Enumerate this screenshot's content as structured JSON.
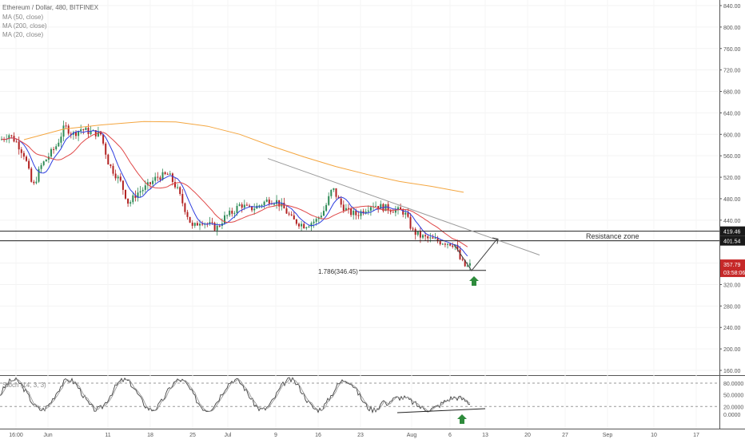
{
  "legend": {
    "symbol": "Ethereum / Dollar, 480, BITFINEX",
    "ma50": "MA (50, close)",
    "ma200": "MA (200, close)",
    "ma20": "MA (20, close)"
  },
  "stoch_label": "Stoch (14, 3, 3)",
  "resistance_label": "Resistance zone",
  "fib_label": "1.786(346.45)",
  "colors": {
    "up": "#2e8b57",
    "down": "#b22222",
    "ma20": "#2f3fe0",
    "ma50": "#e04848",
    "ma200": "#f4a640",
    "trend": "#9a9a9a",
    "price_badge": "#c62828",
    "arrow": "#2e8b3c"
  },
  "price_badges": {
    "current_price": "357.79",
    "countdown": "03:58:06"
  },
  "level_badges": [
    "419.46",
    "401.54"
  ],
  "chart_data": [
    {
      "type": "candlestick",
      "title": "Ethereum / Dollar, 480, BITFINEX",
      "y_ticks": [
        "840.00",
        "800.00",
        "760.00",
        "720.00",
        "680.00",
        "640.00",
        "600.00",
        "560.00",
        "520.00",
        "480.00",
        "440.00",
        "400.00",
        "360.00",
        "320.00",
        "280.00",
        "240.00",
        "200.00",
        "160.00"
      ],
      "ylim": [
        140,
        860
      ],
      "x_ticks": [
        "16:00",
        "Jun",
        "11",
        "18",
        "25",
        "Jul",
        "9",
        "16",
        "23",
        "Aug",
        "6",
        "13",
        "20",
        "27",
        "Sep",
        "10",
        "17"
      ],
      "series": [
        {
          "name": "MA (20, close)"
        },
        {
          "name": "MA (50, close)"
        },
        {
          "name": "MA (200, close)"
        }
      ],
      "levels": [
        419.46,
        401.54
      ],
      "fib_level": 346.45,
      "last_price": 357.79
    },
    {
      "type": "line",
      "title": "Stoch (14, 3, 3)",
      "y_ticks": [
        "80.0000",
        "50.0000",
        "20.0000",
        "0.0000"
      ],
      "ylim": [
        -15,
        100
      ],
      "levels": [
        80,
        20
      ]
    }
  ]
}
